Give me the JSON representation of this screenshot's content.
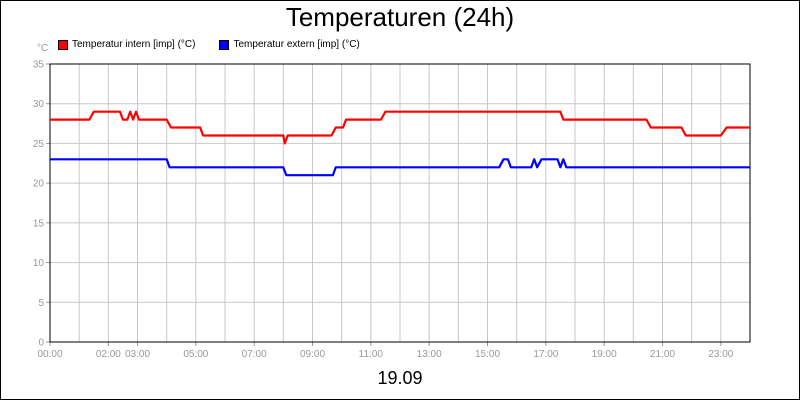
{
  "chart_data": {
    "type": "line",
    "title": "Temperaturen (24h)",
    "y_unit": "°C",
    "date_label": "19.09",
    "ylim": [
      0,
      35
    ],
    "y_ticks": [
      0,
      5,
      10,
      15,
      20,
      25,
      30,
      35
    ],
    "xlim": [
      0,
      24
    ],
    "x_tick_labels": [
      {
        "x": 0,
        "label": "00:00"
      },
      {
        "x": 2,
        "label": "02:00"
      },
      {
        "x": 3,
        "label": "03:00"
      },
      {
        "x": 5,
        "label": "05:00"
      },
      {
        "x": 7,
        "label": "07:00"
      },
      {
        "x": 9,
        "label": "09:00"
      },
      {
        "x": 11,
        "label": "11:00"
      },
      {
        "x": 13,
        "label": "13:00"
      },
      {
        "x": 15,
        "label": "15:00"
      },
      {
        "x": 17,
        "label": "17:00"
      },
      {
        "x": 19,
        "label": "19:00"
      },
      {
        "x": 21,
        "label": "21:00"
      },
      {
        "x": 23,
        "label": "23:00"
      }
    ],
    "x_grid": [
      0,
      1,
      2,
      3,
      4,
      5,
      6,
      7,
      8,
      9,
      10,
      11,
      12,
      13,
      14,
      15,
      16,
      17,
      18,
      19,
      20,
      21,
      22,
      23,
      24
    ],
    "grid": true,
    "legend_position": "top-left",
    "series": [
      {
        "name": "Temperatur intern [imp] (°C)",
        "color": "#ff0000",
        "points": [
          [
            0,
            28
          ],
          [
            1.35,
            28
          ],
          [
            1.5,
            29
          ],
          [
            2.4,
            29
          ],
          [
            2.5,
            28
          ],
          [
            2.65,
            28
          ],
          [
            2.75,
            29
          ],
          [
            2.85,
            28
          ],
          [
            2.95,
            29
          ],
          [
            3.05,
            28
          ],
          [
            4.0,
            28
          ],
          [
            4.15,
            27
          ],
          [
            5.15,
            27
          ],
          [
            5.25,
            26
          ],
          [
            8.0,
            26
          ],
          [
            8.05,
            25
          ],
          [
            8.15,
            26
          ],
          [
            9.65,
            26
          ],
          [
            9.8,
            27
          ],
          [
            10.05,
            27
          ],
          [
            10.15,
            28
          ],
          [
            11.35,
            28
          ],
          [
            11.5,
            29
          ],
          [
            17.5,
            29
          ],
          [
            17.6,
            28
          ],
          [
            20.45,
            28
          ],
          [
            20.6,
            27
          ],
          [
            21.65,
            27
          ],
          [
            21.8,
            26
          ],
          [
            23.0,
            26
          ],
          [
            23.2,
            27
          ],
          [
            24.0,
            27
          ]
        ]
      },
      {
        "name": "Temperatur extern [imp] (°C)",
        "color": "#0000ff",
        "points": [
          [
            0,
            23
          ],
          [
            4.0,
            23
          ],
          [
            4.1,
            22
          ],
          [
            8.0,
            22
          ],
          [
            8.1,
            21
          ],
          [
            9.7,
            21
          ],
          [
            9.8,
            22
          ],
          [
            15.4,
            22
          ],
          [
            15.55,
            23
          ],
          [
            15.7,
            23
          ],
          [
            15.8,
            22
          ],
          [
            16.5,
            22
          ],
          [
            16.6,
            23
          ],
          [
            16.7,
            22
          ],
          [
            16.85,
            23
          ],
          [
            17.4,
            23
          ],
          [
            17.5,
            22
          ],
          [
            17.6,
            23
          ],
          [
            17.7,
            22
          ],
          [
            24.0,
            22
          ]
        ]
      }
    ]
  }
}
